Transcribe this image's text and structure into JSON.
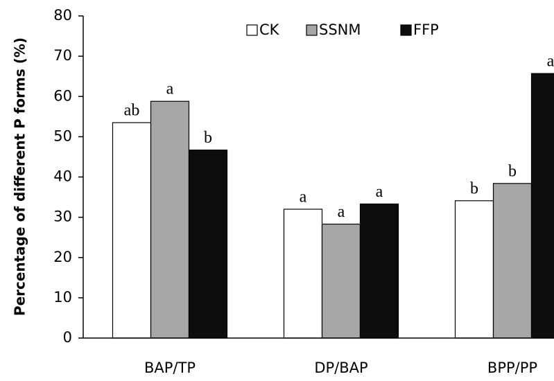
{
  "chart_data": {
    "type": "bar",
    "y_label": "Percentage of different P forms (%)",
    "categories": [
      "BAP/TP",
      "DP/BAP",
      "BPP/PP"
    ],
    "series": [
      {
        "name": "CK",
        "color": "#ffffff",
        "values": [
          53.5,
          32.0,
          34.1
        ],
        "letters": [
          "ab",
          "a",
          "b"
        ]
      },
      {
        "name": "SSNM",
        "color": "#a6a6a6",
        "values": [
          58.8,
          28.3,
          38.4
        ],
        "letters": [
          "a",
          "a",
          "b"
        ]
      },
      {
        "name": "FFP",
        "color": "#0d0d0d",
        "values": [
          46.7,
          33.3,
          65.7
        ],
        "letters": [
          "b",
          "a",
          "a"
        ]
      }
    ],
    "ylim": [
      0,
      80
    ],
    "yticks": [
      0,
      10,
      20,
      30,
      40,
      50,
      60,
      70,
      80
    ],
    "grid": false,
    "legend": "top"
  }
}
